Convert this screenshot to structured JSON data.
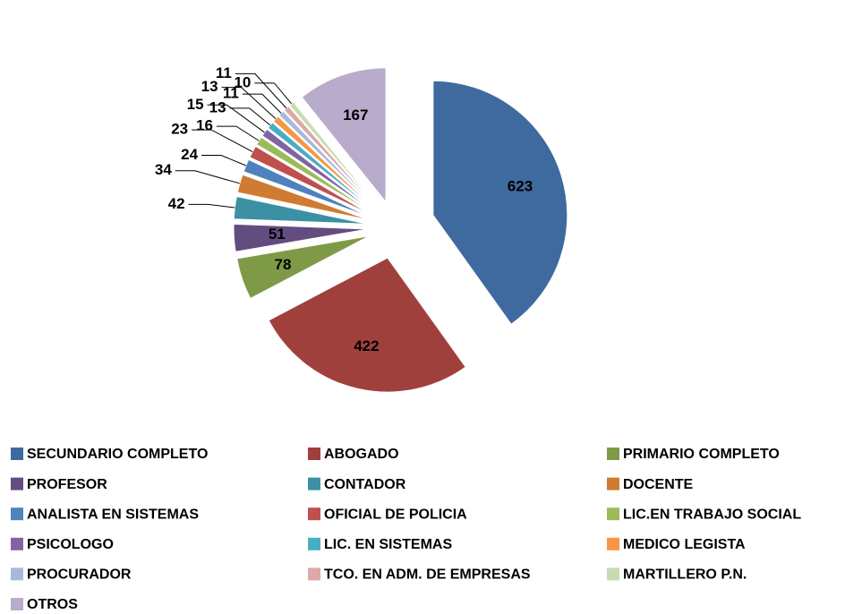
{
  "chart_data": {
    "type": "pie",
    "categories": [
      "SECUNDARIO COMPLETO",
      "ABOGADO",
      "PRIMARIO COMPLETO",
      "PROFESOR",
      "CONTADOR",
      "DOCENTE",
      "ANALISTA EN SISTEMAS",
      "OFICIAL DE POLICIA",
      "LIC.EN TRABAJO SOCIAL",
      "PSICOLOGO",
      "LIC. EN SISTEMAS",
      "MEDICO LEGISTA",
      "PROCURADOR",
      "TCO. EN ADM. DE EMPRESAS",
      "MARTILLERO P.N.",
      "OTROS"
    ],
    "values": [
      623,
      422,
      78,
      51,
      42,
      34,
      24,
      23,
      16,
      15,
      13,
      13,
      11,
      11,
      10,
      167
    ],
    "colors": [
      "#3f6aa0",
      "#a0403d",
      "#7e9a47",
      "#634c7f",
      "#3b90a4",
      "#cf7b32",
      "#4f81bd",
      "#c0504d",
      "#9bbb59",
      "#8064a2",
      "#4bacc6",
      "#f79646",
      "#a7b9da",
      "#dba9a8",
      "#c9dbb2",
      "#b8abcb"
    ],
    "legend": "bottom"
  }
}
